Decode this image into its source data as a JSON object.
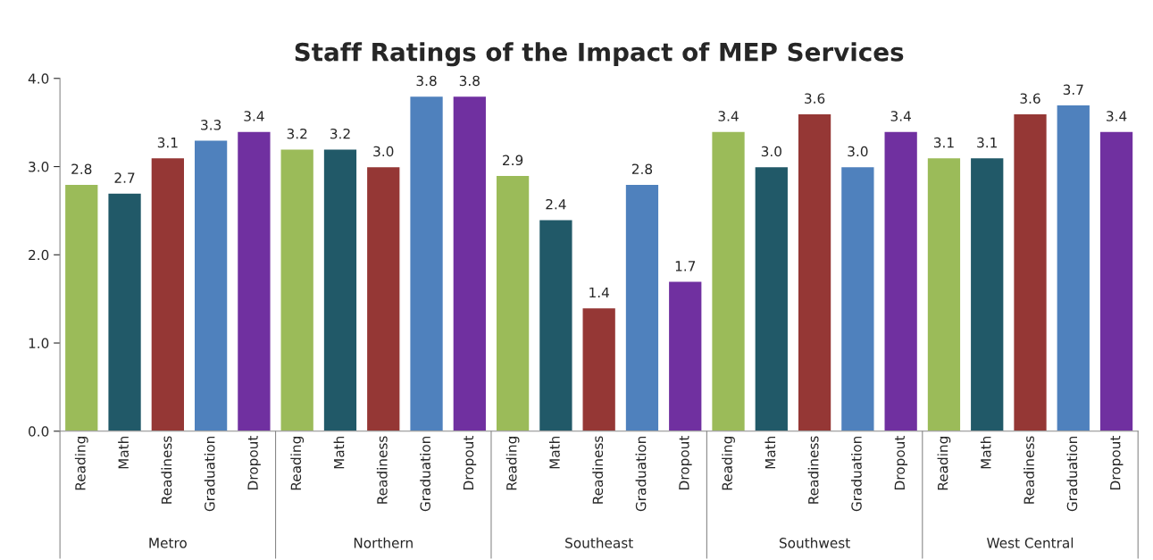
{
  "chart_data": {
    "type": "bar",
    "title": "Staff Ratings of the Impact of MEP Services",
    "categories": [
      "Reading",
      "Math",
      "Readiness",
      "Graduation",
      "Dropout",
      "Reading",
      "Math",
      "Readiness",
      "Graduation",
      "Dropout",
      "Reading",
      "Math",
      "Readiness",
      "Graduation",
      "Dropout",
      "Reading",
      "Math",
      "Readiness",
      "Graduation",
      "Dropout",
      "Reading",
      "Math",
      "Readiness",
      "Graduation",
      "Dropout"
    ],
    "values": [
      2.8,
      2.7,
      3.1,
      3.3,
      3.4,
      3.2,
      3.2,
      3.0,
      3.8,
      3.8,
      2.9,
      2.4,
      1.4,
      2.8,
      1.7,
      3.4,
      3.0,
      3.6,
      3.0,
      3.4,
      3.1,
      3.1,
      3.6,
      3.7,
      3.4
    ],
    "colors": [
      "#9bbb59",
      "#215968",
      "#953735",
      "#4f81bd",
      "#7030a0",
      "#9bbb59",
      "#215968",
      "#953735",
      "#4f81bd",
      "#7030a0",
      "#9bbb59",
      "#215968",
      "#953735",
      "#4f81bd",
      "#7030a0",
      "#9bbb59",
      "#215968",
      "#953735",
      "#4f81bd",
      "#7030a0",
      "#9bbb59",
      "#215968",
      "#953735",
      "#4f81bd",
      "#7030a0"
    ],
    "annotations": [
      "Metro",
      "Northern",
      "Southeast",
      "Southwest",
      "West Central"
    ],
    "ylim": [
      0,
      4
    ],
    "yticks": [
      {
        "value": 0,
        "label": "0.0"
      },
      {
        "value": 1,
        "label": "1.0"
      },
      {
        "value": 2,
        "label": "2.0"
      },
      {
        "value": 3,
        "label": "3.0"
      },
      {
        "value": 4,
        "label": "4.0"
      }
    ],
    "value_labels": [
      "2.8",
      "2.7",
      "3.1",
      "3.3",
      "3.4",
      "3.2",
      "3.2",
      "3.0",
      "3.8",
      "3.8",
      "2.9",
      "2.4",
      "1.4",
      "2.8",
      "1.7",
      "3.4",
      "3.0",
      "3.6",
      "3.0",
      "3.4",
      "3.1",
      "3.1",
      "3.6",
      "3.7",
      "3.4"
    ],
    "grid": false
  }
}
